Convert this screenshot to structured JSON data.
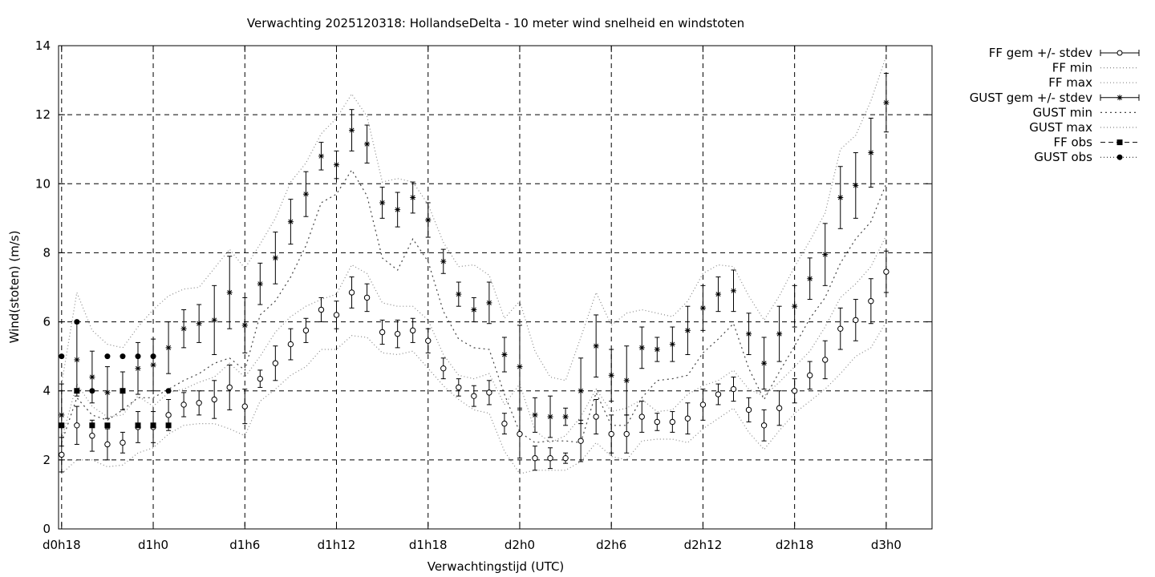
{
  "chart_data": {
    "type": "line",
    "title": "Verwachting 2025120318: HollandseDelta - 10 meter wind snelheid en windstoten",
    "xlabel": "Verwachtingstijd (UTC)",
    "ylabel": "Wind(stoten) (m/s)",
    "xlim": [
      -0.2,
      57
    ],
    "ylim": [
      0,
      14
    ],
    "x_ticks": [
      {
        "x": 0,
        "label": "d0h18"
      },
      {
        "x": 6,
        "label": "d1h0"
      },
      {
        "x": 12,
        "label": "d1h6"
      },
      {
        "x": 18,
        "label": "d1h12"
      },
      {
        "x": 24,
        "label": "d1h18"
      },
      {
        "x": 30,
        "label": "d2h0"
      },
      {
        "x": 36,
        "label": "d2h6"
      },
      {
        "x": 42,
        "label": "d2h12"
      },
      {
        "x": 48,
        "label": "d2h18"
      },
      {
        "x": 54,
        "label": "d3h0"
      }
    ],
    "y_ticks": [
      0,
      2,
      4,
      6,
      8,
      10,
      12,
      14
    ],
    "grid": true,
    "legend_placement": "outside-right",
    "legend": [
      "FF gem +/- stdev",
      "FF min",
      "FF max",
      "GUST gem +/- stdev",
      "GUST min",
      "GUST max",
      "FF obs",
      "GUST obs"
    ],
    "x": [
      0,
      1,
      2,
      3,
      4,
      5,
      6,
      7,
      8,
      9,
      10,
      11,
      12,
      13,
      14,
      15,
      16,
      17,
      18,
      19,
      20,
      21,
      22,
      23,
      24,
      25,
      26,
      27,
      28,
      29,
      30,
      31,
      32,
      33,
      34,
      35,
      36,
      37,
      38,
      39,
      40,
      41,
      42,
      43,
      44,
      45,
      46,
      47,
      48,
      49,
      50,
      51,
      52,
      53,
      54
    ],
    "ff_mean": [
      2.15,
      3.0,
      2.7,
      2.45,
      2.5,
      2.95,
      2.95,
      3.3,
      3.6,
      3.65,
      3.75,
      4.1,
      3.55,
      4.35,
      4.8,
      5.35,
      5.75,
      6.35,
      6.2,
      6.85,
      6.7,
      5.7,
      5.65,
      5.75,
      5.45,
      4.65,
      4.1,
      3.85,
      3.95,
      3.05,
      2.75,
      2.05,
      2.05,
      2.05,
      2.55,
      3.25,
      2.75,
      2.75,
      3.25,
      3.1,
      3.1,
      3.2,
      3.6,
      3.9,
      4.05,
      3.45,
      3.0,
      3.5,
      4.0,
      4.45,
      4.9,
      5.8,
      6.05,
      6.6,
      7.45
    ],
    "ff_sd": [
      0.5,
      0.55,
      0.45,
      0.45,
      0.3,
      0.45,
      0.45,
      0.45,
      0.35,
      0.35,
      0.55,
      0.65,
      0.5,
      0.25,
      0.5,
      0.45,
      0.35,
      0.35,
      0.4,
      0.45,
      0.4,
      0.35,
      0.4,
      0.35,
      0.35,
      0.3,
      0.25,
      0.3,
      0.35,
      0.3,
      0.7,
      0.35,
      0.3,
      0.15,
      0.6,
      0.5,
      0.55,
      0.55,
      0.45,
      0.25,
      0.3,
      0.45,
      0.45,
      0.3,
      0.35,
      0.35,
      0.45,
      0.5,
      0.35,
      0.4,
      0.55,
      0.6,
      0.6,
      0.65,
      0.6
    ],
    "ff_min": [
      1.6,
      2.0,
      2.0,
      1.8,
      1.85,
      2.2,
      2.35,
      2.75,
      3.0,
      3.05,
      3.05,
      2.9,
      2.7,
      3.7,
      4.05,
      4.45,
      4.7,
      5.2,
      5.2,
      5.6,
      5.55,
      5.1,
      5.05,
      5.15,
      4.65,
      4.15,
      3.75,
      3.45,
      3.35,
      2.25,
      1.6,
      1.7,
      1.7,
      1.7,
      1.95,
      2.5,
      2.1,
      2.0,
      2.55,
      2.6,
      2.6,
      2.5,
      2.9,
      3.2,
      3.5,
      2.8,
      2.3,
      2.85,
      3.35,
      3.7,
      4.05,
      4.5,
      5.0,
      5.25,
      6.0
    ],
    "ff_max": [
      2.6,
      4.2,
      3.55,
      3.25,
      3.3,
      3.85,
      3.55,
      3.95,
      4.05,
      4.25,
      4.4,
      4.8,
      4.4,
      5.0,
      5.7,
      6.15,
      6.45,
      6.65,
      6.8,
      7.65,
      7.4,
      6.55,
      6.45,
      6.45,
      6.05,
      5.05,
      4.45,
      4.35,
      4.5,
      3.6,
      4.2,
      2.85,
      2.5,
      2.7,
      3.25,
      4.05,
      3.4,
      3.5,
      3.75,
      3.4,
      3.45,
      3.9,
      4.15,
      4.3,
      4.6,
      4.05,
      3.85,
      4.25,
      4.7,
      5.15,
      5.85,
      6.7,
      7.1,
      7.6,
      8.5
    ],
    "gust_mean": [
      3.3,
      4.9,
      4.4,
      3.95,
      4.0,
      4.65,
      4.75,
      5.25,
      5.8,
      5.95,
      6.05,
      6.85,
      5.9,
      7.1,
      7.85,
      8.9,
      9.7,
      10.8,
      10.55,
      11.55,
      11.15,
      9.45,
      9.25,
      9.6,
      8.95,
      7.75,
      6.8,
      6.35,
      6.55,
      5.05,
      4.7,
      3.3,
      3.25,
      3.25,
      4.0,
      5.3,
      4.45,
      4.3,
      5.25,
      5.2,
      5.35,
      5.75,
      6.4,
      6.8,
      6.9,
      5.65,
      4.8,
      5.65,
      6.45,
      7.25,
      7.95,
      9.6,
      9.95,
      10.9,
      12.35
    ],
    "gust_sd": [
      0.9,
      1.05,
      0.75,
      0.75,
      0.55,
      0.75,
      0.75,
      0.75,
      0.55,
      0.55,
      1.0,
      1.05,
      0.8,
      0.6,
      0.75,
      0.65,
      0.65,
      0.4,
      0.4,
      0.6,
      0.55,
      0.45,
      0.5,
      0.45,
      0.5,
      0.35,
      0.35,
      0.35,
      0.6,
      0.5,
      1.2,
      0.5,
      0.6,
      0.25,
      0.95,
      0.9,
      0.75,
      1.0,
      0.6,
      0.35,
      0.5,
      0.7,
      0.65,
      0.5,
      0.6,
      0.6,
      0.75,
      0.8,
      0.6,
      0.6,
      0.9,
      0.9,
      0.95,
      1.0,
      0.85
    ],
    "gust_min": [
      2.5,
      3.8,
      3.3,
      3.15,
      3.45,
      3.8,
      3.8,
      4.05,
      4.3,
      4.5,
      4.8,
      4.95,
      4.6,
      6.2,
      6.6,
      7.3,
      8.2,
      9.45,
      9.7,
      10.4,
      9.65,
      7.85,
      7.5,
      8.4,
      7.75,
      6.3,
      5.5,
      5.25,
      5.2,
      3.9,
      2.8,
      2.5,
      2.55,
      2.55,
      2.5,
      3.95,
      3.0,
      3.0,
      3.8,
      4.3,
      4.35,
      4.45,
      5.1,
      5.5,
      5.95,
      4.65,
      3.75,
      4.55,
      5.3,
      6.1,
      6.7,
      7.7,
      8.4,
      8.9,
      10.0
    ],
    "gust_max": [
      4.2,
      6.85,
      5.75,
      5.35,
      5.25,
      5.85,
      6.35,
      6.75,
      6.95,
      7.0,
      7.55,
      8.1,
      7.55,
      8.25,
      9.0,
      10.05,
      10.6,
      11.45,
      11.9,
      12.6,
      11.95,
      10.05,
      10.15,
      10.05,
      9.4,
      8.3,
      7.6,
      7.65,
      7.35,
      6.1,
      6.6,
      5.15,
      4.4,
      4.3,
      5.55,
      6.85,
      5.9,
      6.25,
      6.35,
      6.25,
      6.15,
      6.6,
      7.4,
      7.65,
      7.6,
      6.75,
      6.05,
      6.75,
      7.6,
      8.35,
      9.15,
      11.0,
      11.4,
      12.4,
      13.7
    ],
    "ff_obs": {
      "x": [
        0,
        1,
        2,
        3,
        4,
        5,
        6,
        7
      ],
      "values": [
        3,
        4,
        3,
        3,
        4,
        3,
        3,
        3
      ]
    },
    "gust_obs": {
      "x": [
        0,
        1,
        2,
        3,
        4,
        5,
        6,
        7
      ],
      "values": [
        5,
        6,
        4,
        5,
        5,
        5,
        5,
        4
      ]
    }
  }
}
